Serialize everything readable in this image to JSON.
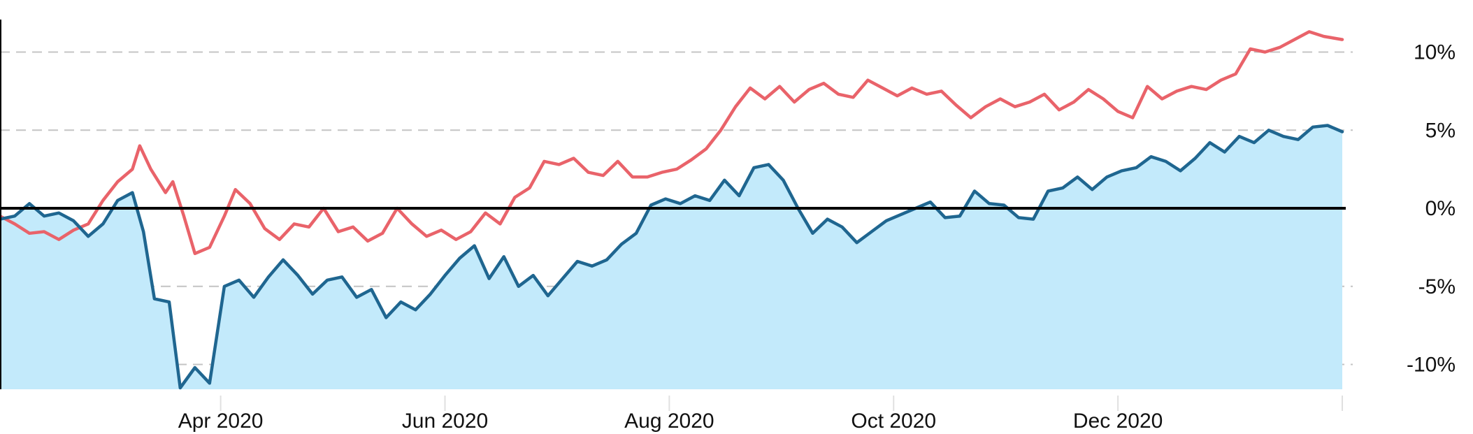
{
  "chart_data": {
    "type": "area",
    "title": "",
    "xlabel": "",
    "ylabel": "",
    "x_range": [
      "2020-02-01",
      "2021-01-31"
    ],
    "ylim": [
      -11.5,
      12.5
    ],
    "x_ticks": [
      {
        "date": "2020-04-01",
        "label": "Apr 2020"
      },
      {
        "date": "2020-06-01",
        "label": "Jun 2020"
      },
      {
        "date": "2020-08-01",
        "label": "Aug 2020"
      },
      {
        "date": "2020-10-01",
        "label": "Oct 2020"
      },
      {
        "date": "2020-12-01",
        "label": "Dec 2020"
      },
      {
        "date": "2021-01-31",
        "label": ""
      }
    ],
    "y_ticks": [
      {
        "value": 10,
        "label": "10%"
      },
      {
        "value": 5,
        "label": "5%"
      },
      {
        "value": 0,
        "label": "0%"
      },
      {
        "value": -5,
        "label": "-5%"
      },
      {
        "value": -10,
        "label": "-10%"
      }
    ],
    "grid": "horizontal-dashed",
    "legend": "none",
    "series": [
      {
        "color": "#e9636a",
        "fill": null,
        "points": [
          [
            "2020-02-01",
            -0.5
          ],
          [
            "2020-02-05",
            -1.0
          ],
          [
            "2020-02-09",
            -1.6
          ],
          [
            "2020-02-13",
            -1.5
          ],
          [
            "2020-02-17",
            -2.0
          ],
          [
            "2020-02-21",
            -1.4
          ],
          [
            "2020-02-25",
            -1.0
          ],
          [
            "2020-02-29",
            0.5
          ],
          [
            "2020-03-04",
            1.7
          ],
          [
            "2020-03-08",
            2.5
          ],
          [
            "2020-03-10",
            4.0
          ],
          [
            "2020-03-13",
            2.5
          ],
          [
            "2020-03-17",
            1.0
          ],
          [
            "2020-03-19",
            1.7
          ],
          [
            "2020-03-22",
            -0.5
          ],
          [
            "2020-03-25",
            -2.9
          ],
          [
            "2020-03-29",
            -2.5
          ],
          [
            "2020-04-02",
            -0.5
          ],
          [
            "2020-04-05",
            1.2
          ],
          [
            "2020-04-09",
            0.3
          ],
          [
            "2020-04-13",
            -1.3
          ],
          [
            "2020-04-17",
            -2.0
          ],
          [
            "2020-04-21",
            -1.0
          ],
          [
            "2020-04-25",
            -1.2
          ],
          [
            "2020-04-29",
            0.0
          ],
          [
            "2020-05-03",
            -1.5
          ],
          [
            "2020-05-07",
            -1.2
          ],
          [
            "2020-05-11",
            -2.1
          ],
          [
            "2020-05-15",
            -1.6
          ],
          [
            "2020-05-19",
            0.0
          ],
          [
            "2020-05-23",
            -1.0
          ],
          [
            "2020-05-27",
            -1.8
          ],
          [
            "2020-05-31",
            -1.4
          ],
          [
            "2020-06-04",
            -2.0
          ],
          [
            "2020-06-08",
            -1.5
          ],
          [
            "2020-06-12",
            -0.3
          ],
          [
            "2020-06-16",
            -1.0
          ],
          [
            "2020-06-20",
            0.7
          ],
          [
            "2020-06-24",
            1.3
          ],
          [
            "2020-06-28",
            3.0
          ],
          [
            "2020-07-02",
            2.8
          ],
          [
            "2020-07-06",
            3.2
          ],
          [
            "2020-07-10",
            2.3
          ],
          [
            "2020-07-14",
            2.1
          ],
          [
            "2020-07-18",
            3.0
          ],
          [
            "2020-07-22",
            2.0
          ],
          [
            "2020-07-26",
            2.0
          ],
          [
            "2020-07-30",
            2.3
          ],
          [
            "2020-08-03",
            2.5
          ],
          [
            "2020-08-07",
            3.1
          ],
          [
            "2020-08-11",
            3.8
          ],
          [
            "2020-08-15",
            5.0
          ],
          [
            "2020-08-19",
            6.5
          ],
          [
            "2020-08-23",
            7.7
          ],
          [
            "2020-08-27",
            7.0
          ],
          [
            "2020-08-31",
            7.8
          ],
          [
            "2020-09-04",
            6.8
          ],
          [
            "2020-09-08",
            7.6
          ],
          [
            "2020-09-12",
            8.0
          ],
          [
            "2020-09-16",
            7.3
          ],
          [
            "2020-09-20",
            7.1
          ],
          [
            "2020-09-24",
            8.2
          ],
          [
            "2020-09-28",
            7.7
          ],
          [
            "2020-10-02",
            7.2
          ],
          [
            "2020-10-06",
            7.7
          ],
          [
            "2020-10-10",
            7.3
          ],
          [
            "2020-10-14",
            7.5
          ],
          [
            "2020-10-18",
            6.6
          ],
          [
            "2020-10-22",
            5.8
          ],
          [
            "2020-10-26",
            6.5
          ],
          [
            "2020-10-30",
            7.0
          ],
          [
            "2020-11-03",
            6.5
          ],
          [
            "2020-11-07",
            6.8
          ],
          [
            "2020-11-11",
            7.3
          ],
          [
            "2020-11-15",
            6.3
          ],
          [
            "2020-11-19",
            6.8
          ],
          [
            "2020-11-23",
            7.6
          ],
          [
            "2020-11-27",
            7.0
          ],
          [
            "2020-12-01",
            6.2
          ],
          [
            "2020-12-05",
            5.8
          ],
          [
            "2020-12-09",
            7.8
          ],
          [
            "2020-12-13",
            7.0
          ],
          [
            "2020-12-17",
            7.5
          ],
          [
            "2020-12-21",
            7.8
          ],
          [
            "2020-12-25",
            7.6
          ],
          [
            "2020-12-29",
            8.2
          ],
          [
            "2021-01-02",
            8.6
          ],
          [
            "2021-01-06",
            10.2
          ],
          [
            "2021-01-10",
            10.0
          ],
          [
            "2021-01-14",
            10.3
          ],
          [
            "2021-01-18",
            10.8
          ],
          [
            "2021-01-22",
            11.3
          ],
          [
            "2021-01-26",
            11.0
          ],
          [
            "2021-01-31",
            10.8
          ]
        ]
      },
      {
        "color": "#1f6690",
        "fill": "#c3eafb",
        "points": [
          [
            "2020-02-01",
            -0.7
          ],
          [
            "2020-02-05",
            -0.5
          ],
          [
            "2020-02-09",
            0.3
          ],
          [
            "2020-02-13",
            -0.5
          ],
          [
            "2020-02-17",
            -0.3
          ],
          [
            "2020-02-21",
            -0.8
          ],
          [
            "2020-02-25",
            -1.8
          ],
          [
            "2020-02-29",
            -1.0
          ],
          [
            "2020-03-04",
            0.5
          ],
          [
            "2020-03-08",
            1.0
          ],
          [
            "2020-03-11",
            -1.5
          ],
          [
            "2020-03-14",
            -5.8
          ],
          [
            "2020-03-18",
            -6.0
          ],
          [
            "2020-03-21",
            -11.5
          ],
          [
            "2020-03-25",
            -10.2
          ],
          [
            "2020-03-29",
            -11.2
          ],
          [
            "2020-04-02",
            -5.0
          ],
          [
            "2020-04-06",
            -4.6
          ],
          [
            "2020-04-10",
            -5.7
          ],
          [
            "2020-04-14",
            -4.4
          ],
          [
            "2020-04-18",
            -3.3
          ],
          [
            "2020-04-22",
            -4.3
          ],
          [
            "2020-04-26",
            -5.5
          ],
          [
            "2020-04-30",
            -4.6
          ],
          [
            "2020-05-04",
            -4.4
          ],
          [
            "2020-05-08",
            -5.7
          ],
          [
            "2020-05-12",
            -5.2
          ],
          [
            "2020-05-16",
            -7.0
          ],
          [
            "2020-05-20",
            -6.0
          ],
          [
            "2020-05-24",
            -6.5
          ],
          [
            "2020-05-28",
            -5.5
          ],
          [
            "2020-06-01",
            -4.3
          ],
          [
            "2020-06-05",
            -3.2
          ],
          [
            "2020-06-09",
            -2.4
          ],
          [
            "2020-06-13",
            -4.5
          ],
          [
            "2020-06-17",
            -3.1
          ],
          [
            "2020-06-21",
            -5.0
          ],
          [
            "2020-06-25",
            -4.3
          ],
          [
            "2020-06-29",
            -5.6
          ],
          [
            "2020-07-03",
            -4.5
          ],
          [
            "2020-07-07",
            -3.4
          ],
          [
            "2020-07-11",
            -3.7
          ],
          [
            "2020-07-15",
            -3.3
          ],
          [
            "2020-07-19",
            -2.3
          ],
          [
            "2020-07-23",
            -1.6
          ],
          [
            "2020-07-27",
            0.2
          ],
          [
            "2020-07-31",
            0.6
          ],
          [
            "2020-08-04",
            0.3
          ],
          [
            "2020-08-08",
            0.8
          ],
          [
            "2020-08-12",
            0.5
          ],
          [
            "2020-08-16",
            1.8
          ],
          [
            "2020-08-20",
            0.8
          ],
          [
            "2020-08-24",
            2.6
          ],
          [
            "2020-08-28",
            2.8
          ],
          [
            "2020-09-01",
            1.8
          ],
          [
            "2020-09-05",
            0.0
          ],
          [
            "2020-09-09",
            -1.6
          ],
          [
            "2020-09-13",
            -0.7
          ],
          [
            "2020-09-17",
            -1.2
          ],
          [
            "2020-09-21",
            -2.2
          ],
          [
            "2020-09-25",
            -1.5
          ],
          [
            "2020-09-29",
            -0.8
          ],
          [
            "2020-10-03",
            -0.4
          ],
          [
            "2020-10-07",
            0.0
          ],
          [
            "2020-10-11",
            0.4
          ],
          [
            "2020-10-15",
            -0.6
          ],
          [
            "2020-10-19",
            -0.5
          ],
          [
            "2020-10-23",
            1.1
          ],
          [
            "2020-10-27",
            0.3
          ],
          [
            "2020-10-31",
            0.2
          ],
          [
            "2020-11-04",
            -0.6
          ],
          [
            "2020-11-08",
            -0.7
          ],
          [
            "2020-11-12",
            1.1
          ],
          [
            "2020-11-16",
            1.3
          ],
          [
            "2020-11-20",
            2.0
          ],
          [
            "2020-11-24",
            1.2
          ],
          [
            "2020-11-28",
            2.0
          ],
          [
            "2020-12-02",
            2.4
          ],
          [
            "2020-12-06",
            2.6
          ],
          [
            "2020-12-10",
            3.3
          ],
          [
            "2020-12-14",
            3.0
          ],
          [
            "2020-12-18",
            2.4
          ],
          [
            "2020-12-22",
            3.2
          ],
          [
            "2020-12-26",
            4.2
          ],
          [
            "2020-12-30",
            3.6
          ],
          [
            "2021-01-03",
            4.6
          ],
          [
            "2021-01-07",
            4.2
          ],
          [
            "2021-01-11",
            5.0
          ],
          [
            "2021-01-15",
            4.6
          ],
          [
            "2021-01-19",
            4.4
          ],
          [
            "2021-01-23",
            5.2
          ],
          [
            "2021-01-27",
            5.3
          ],
          [
            "2021-01-31",
            4.9
          ]
        ]
      }
    ]
  }
}
